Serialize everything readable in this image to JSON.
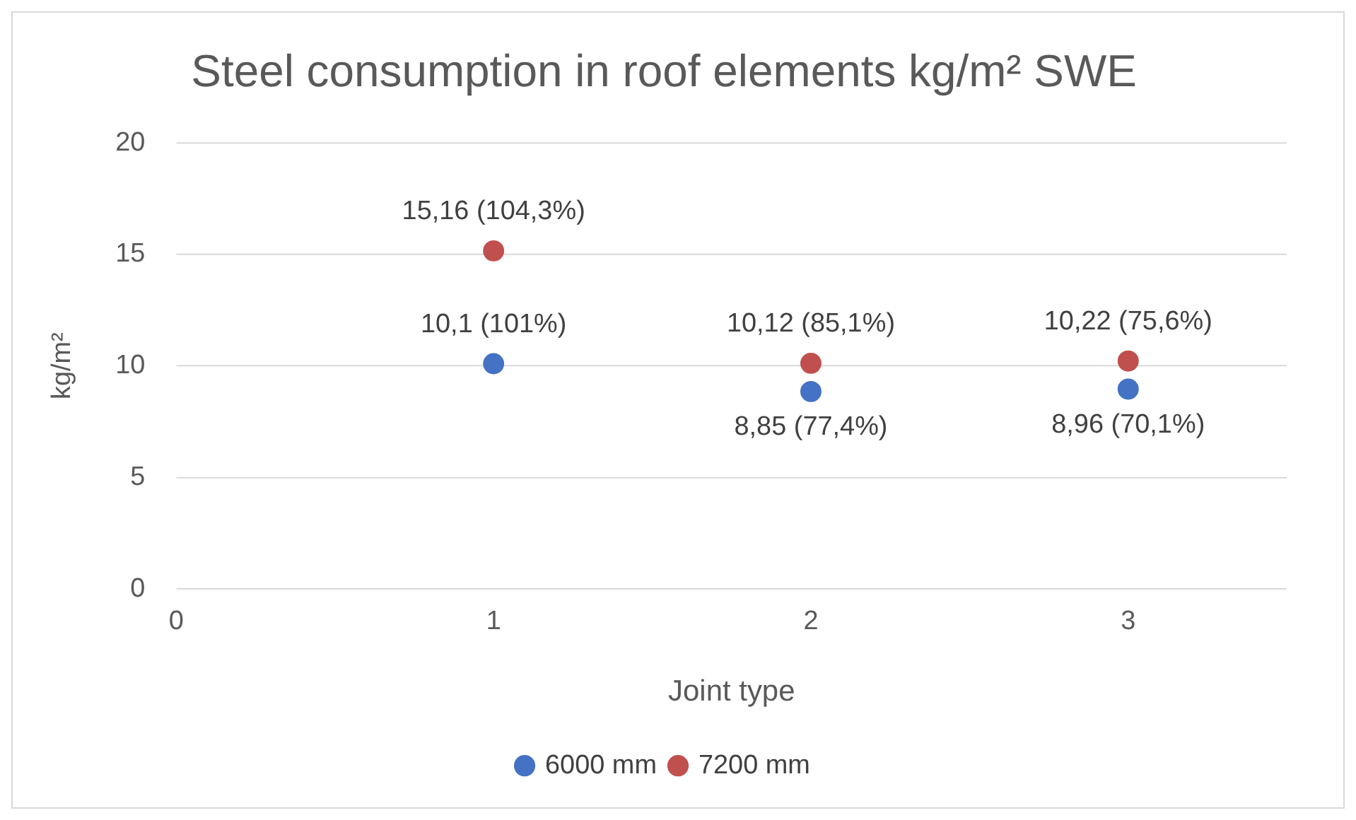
{
  "chart_data": {
    "type": "scatter",
    "title": "Steel consumption in roof elements kg/m² SWE",
    "xlabel": "Joint type",
    "ylabel": "kg/m²",
    "x": [
      1,
      2,
      3
    ],
    "series": [
      {
        "name": "6000 mm",
        "color": "#4472c4",
        "values": [
          10.1,
          8.85,
          8.96
        ],
        "value_labels": [
          "10,1 (101%)",
          "8,85 (77,4%)",
          "8,96 (70,1%)"
        ]
      },
      {
        "name": "7200 mm",
        "color": "#c0504d",
        "values": [
          15.16,
          10.12,
          10.22
        ],
        "value_labels": [
          "15,16 (104,3%)",
          "10,12 (85,1%)",
          "10,22 (75,6%)"
        ]
      }
    ],
    "xlim": [
      0,
      3.5
    ],
    "xticks": [
      0,
      1,
      2,
      3
    ],
    "ylim": [
      0,
      20
    ],
    "yticks": [
      0,
      5,
      10,
      15,
      20
    ],
    "grid": "y",
    "legend": "bottom",
    "marker": "circle"
  }
}
